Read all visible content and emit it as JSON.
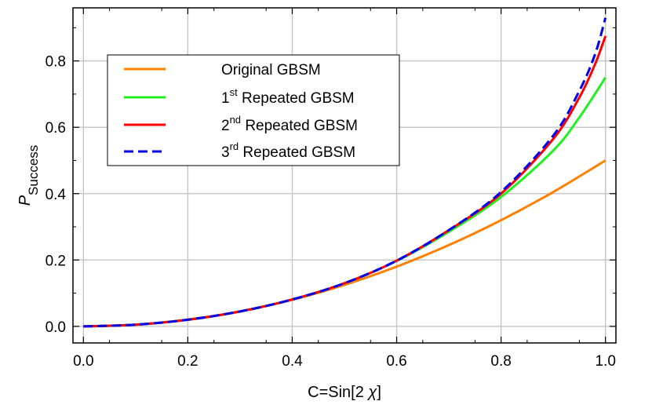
{
  "chart_data": {
    "type": "line",
    "xlabel": {
      "prefix": "C=Sin[2 ",
      "symbol": "χ",
      "suffix": "]"
    },
    "ylabel": {
      "main": "P",
      "sub": "Success"
    },
    "xlim": [
      -0.02,
      1.02
    ],
    "ylim": [
      -0.05,
      0.96
    ],
    "xticks": [
      "0.0",
      "0.2",
      "0.4",
      "0.6",
      "0.8",
      "1.0"
    ],
    "yticks": [
      "0.0",
      "0.2",
      "0.4",
      "0.6",
      "0.8"
    ],
    "grid": true,
    "legend_position": "top-left",
    "series": [
      {
        "name_parts": {
          "pre": "",
          "sup": "",
          "post": "Original GBSM"
        },
        "color": "#ff8000",
        "dash": "solid",
        "x": [
          0.0,
          0.1,
          0.2,
          0.3,
          0.4,
          0.5,
          0.6,
          0.7,
          0.8,
          0.9,
          1.0
        ],
        "y": [
          0.0,
          0.005,
          0.02,
          0.045,
          0.08,
          0.125,
          0.18,
          0.245,
          0.32,
          0.405,
          0.5
        ]
      },
      {
        "name_parts": {
          "pre": "1",
          "sup": "st",
          "post": " Repeated GBSM"
        },
        "color": "#22ee22",
        "dash": "solid",
        "x": [
          0.0,
          0.1,
          0.2,
          0.3,
          0.4,
          0.5,
          0.6,
          0.7,
          0.8,
          0.9,
          0.95,
          1.0
        ],
        "y": [
          0.0,
          0.005,
          0.02,
          0.045,
          0.081,
          0.13,
          0.197,
          0.285,
          0.39,
          0.53,
          0.63,
          0.75
        ]
      },
      {
        "name_parts": {
          "pre": "2",
          "sup": "nd",
          "post": " Repeated GBSM"
        },
        "color": "#ff0000",
        "dash": "solid",
        "x": [
          0.0,
          0.1,
          0.2,
          0.3,
          0.4,
          0.5,
          0.6,
          0.7,
          0.8,
          0.9,
          0.95,
          0.98,
          1.0
        ],
        "y": [
          0.0,
          0.005,
          0.02,
          0.045,
          0.081,
          0.13,
          0.198,
          0.29,
          0.4,
          0.565,
          0.69,
          0.79,
          0.875
        ]
      },
      {
        "name_parts": {
          "pre": "3",
          "sup": "rd",
          "post": " Repeated GBSM"
        },
        "color": "#0000ee",
        "dash": "dashed",
        "x": [
          0.0,
          0.1,
          0.2,
          0.3,
          0.4,
          0.5,
          0.6,
          0.7,
          0.8,
          0.9,
          0.95,
          0.98,
          1.0
        ],
        "y": [
          0.0,
          0.005,
          0.02,
          0.045,
          0.081,
          0.13,
          0.198,
          0.29,
          0.405,
          0.575,
          0.71,
          0.82,
          0.93
        ]
      }
    ]
  }
}
